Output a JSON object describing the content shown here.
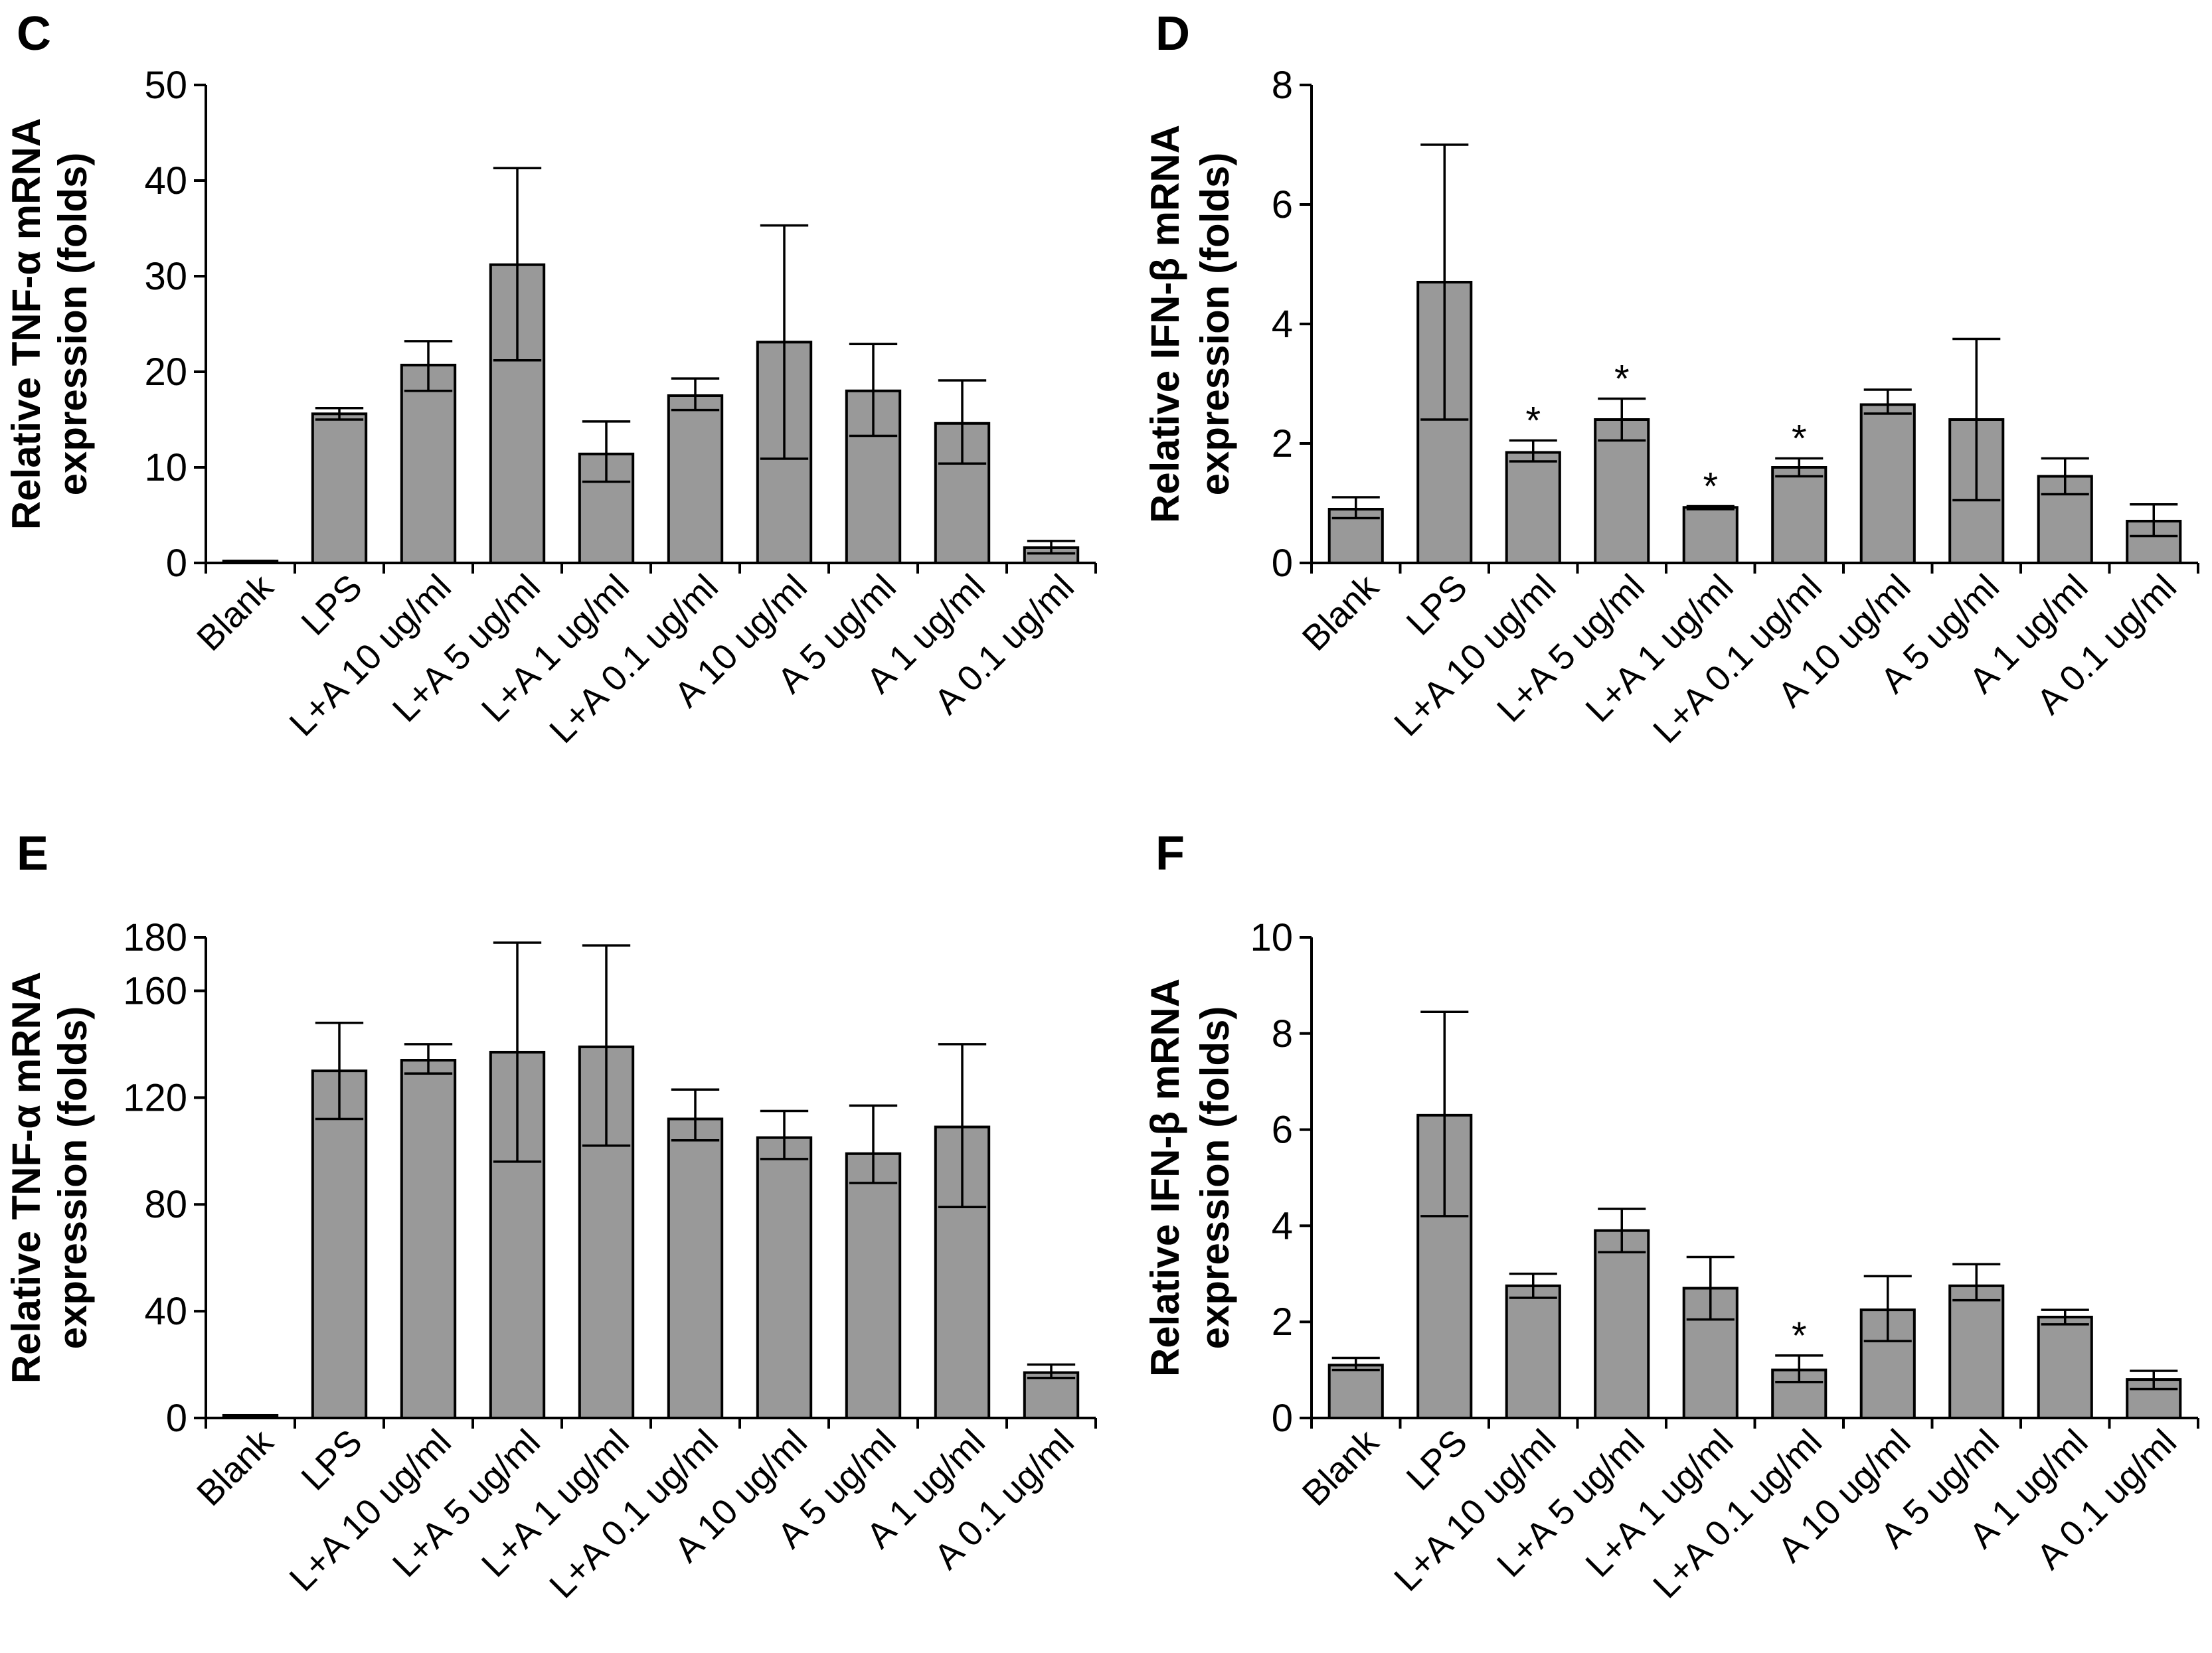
{
  "chart_data": [
    {
      "type": "bar",
      "panel": "C",
      "ylabel": [
        "Relative TNF-α mRNA",
        "expression (folds)"
      ],
      "ylim": [
        0,
        50
      ],
      "yticks": [
        0,
        10,
        20,
        30,
        40,
        50
      ],
      "categories": [
        "Blank",
        "LPS",
        "L+A 10 ug/ml",
        "L+A 5 ug/ml",
        "L+A 1 ug/ml",
        "L+A 0.1 ug/ml",
        "A 10 ug/ml",
        "A 5 ug/ml",
        "A 1 ug/ml",
        "A 0.1 ug/ml"
      ],
      "values": [
        0.2,
        15.6,
        20.7,
        31.2,
        11.4,
        17.5,
        23.1,
        18.0,
        14.6,
        1.6
      ],
      "error_low": [
        0.2,
        15.0,
        18.0,
        21.2,
        8.5,
        16.0,
        10.9,
        13.3,
        10.4,
        1.0
      ],
      "error_high": [
        0.2,
        16.2,
        23.2,
        41.3,
        14.8,
        19.3,
        35.3,
        22.9,
        19.1,
        2.3
      ],
      "significance": [
        "",
        "",
        "",
        "",
        "",
        "",
        "",
        "",
        "",
        ""
      ]
    },
    {
      "type": "bar",
      "panel": "D",
      "ylabel": [
        "Relative IFN-β mRNA",
        "expression (folds)"
      ],
      "ylim": [
        0,
        8
      ],
      "yticks": [
        0,
        2,
        4,
        6,
        8
      ],
      "categories": [
        "Blank",
        "LPS",
        "L+A 10 ug/ml",
        "L+A 5 ug/ml",
        "L+A 1 ug/ml",
        "L+A 0.1 ug/ml",
        "A 10 ug/ml",
        "A 5 ug/ml",
        "A 1 ug/ml",
        "A 0.1 ug/ml"
      ],
      "values": [
        0.9,
        4.7,
        1.85,
        2.4,
        0.93,
        1.6,
        2.65,
        2.4,
        1.45,
        0.7
      ],
      "error_low": [
        0.75,
        2.4,
        1.7,
        2.05,
        0.9,
        1.45,
        2.5,
        1.05,
        1.15,
        0.45
      ],
      "error_high": [
        1.1,
        7.0,
        2.05,
        2.75,
        0.95,
        1.75,
        2.9,
        3.75,
        1.75,
        0.98
      ],
      "significance": [
        "",
        "",
        "*",
        "*",
        "*",
        "*",
        "",
        "",
        "",
        ""
      ]
    },
    {
      "type": "bar",
      "panel": "E",
      "ylabel": [
        "Relative TNF-α mRNA",
        "expression (folds)"
      ],
      "ylim": [
        0,
        180
      ],
      "yticks": [
        0,
        40,
        80,
        120,
        160,
        180
      ],
      "categories": [
        "Blank",
        "LPS",
        "L+A 10 ug/ml",
        "L+A 5 ug/ml",
        "L+A 1 ug/ml",
        "L+A 0.1 ug/ml",
        "A 10 ug/ml",
        "A 5 ug/ml",
        "A 1 ug/ml",
        "A 0.1 ug/ml"
      ],
      "values": [
        1,
        130,
        134,
        137,
        139,
        112,
        105,
        99,
        109,
        17
      ],
      "error_low": [
        1,
        112,
        129,
        96,
        102,
        104,
        97,
        88,
        79,
        15
      ],
      "error_high": [
        1,
        148,
        140,
        178,
        177,
        123,
        115,
        117,
        140,
        20
      ],
      "significance": [
        "",
        "",
        "",
        "",
        "",
        "",
        "",
        "",
        "",
        ""
      ]
    },
    {
      "type": "bar",
      "panel": "F",
      "ylabel": [
        "Relative IFN-β mRNA",
        "expression (folds)"
      ],
      "ylim": [
        0,
        10
      ],
      "yticks": [
        0,
        2,
        4,
        6,
        8,
        10
      ],
      "categories": [
        "Blank",
        "LPS",
        "L+A 10 ug/ml",
        "L+A 5 ug/ml",
        "L+A 1 ug/ml",
        "L+A 0.1 ug/ml",
        "A 10 ug/ml",
        "A 5 ug/ml",
        "A 1 ug/ml",
        "A 0.1 ug/ml"
      ],
      "values": [
        1.1,
        6.3,
        2.75,
        3.9,
        2.7,
        1.0,
        2.25,
        2.75,
        2.1,
        0.8
      ],
      "error_low": [
        1.0,
        4.2,
        2.5,
        3.45,
        2.05,
        0.75,
        1.6,
        2.45,
        1.95,
        0.6
      ],
      "error_high": [
        1.25,
        8.45,
        3.0,
        4.35,
        3.35,
        1.3,
        2.95,
        3.2,
        2.25,
        0.98
      ],
      "significance": [
        "",
        "",
        "",
        "",
        "",
        "*",
        "",
        "",
        "",
        ""
      ]
    }
  ]
}
